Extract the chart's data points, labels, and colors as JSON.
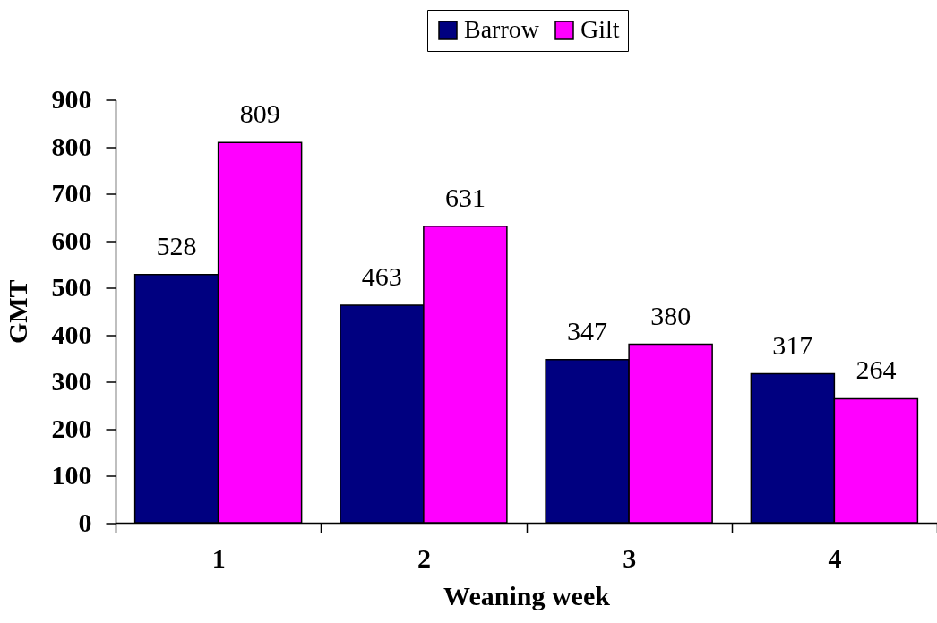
{
  "chart_data": {
    "type": "bar",
    "xlabel": "Weaning week",
    "ylabel": "GMT",
    "categories": [
      "1",
      "2",
      "3",
      "4"
    ],
    "series": [
      {
        "name": "Barrow",
        "color": "#000080",
        "values": [
          528,
          463,
          347,
          317
        ]
      },
      {
        "name": "Gilt",
        "color": "#ff00ff",
        "values": [
          809,
          631,
          380,
          264
        ]
      }
    ],
    "ylim": [
      0,
      900
    ],
    "yticks": [
      0,
      100,
      200,
      300,
      400,
      500,
      600,
      700,
      800,
      900
    ],
    "legend": "top",
    "data_labels": true
  }
}
